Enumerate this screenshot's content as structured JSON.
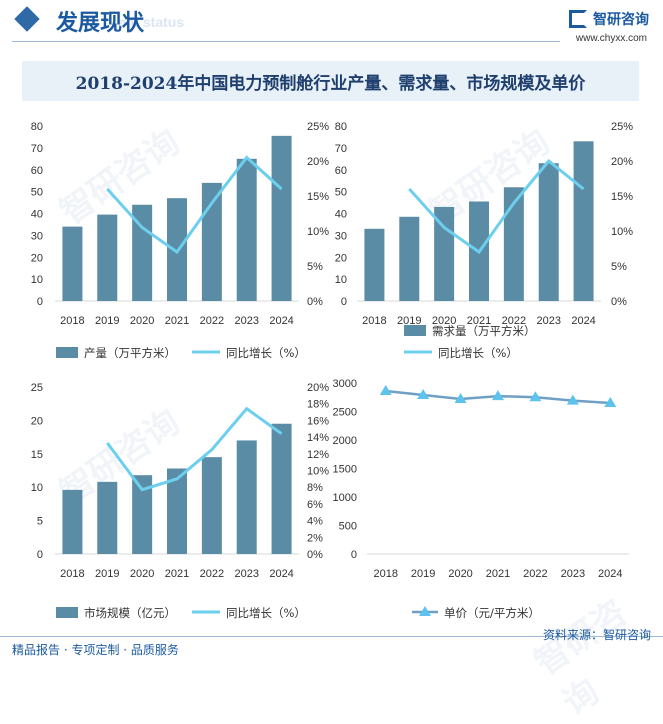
{
  "header": {
    "section_title": "发展现状",
    "section_subtitle": "ent status",
    "brand_name": "智研咨询",
    "brand_url": "www.chyxx.com"
  },
  "title": "2018-2024年中国电力预制舱行业产量、需求量、市场规模及单价",
  "watermark_text": "智研咨询",
  "colors": {
    "bar": "#5b8ca6",
    "line": "#6ccfee",
    "price": "#6fa0c4",
    "price_marker": "#5cc3ec"
  },
  "footer": {
    "left": "精品报告 · 专项定制 · 品质服务",
    "source": "资料来源：智研咨询"
  },
  "chart_data": [
    {
      "type": "bar",
      "categories": [
        "2018",
        "2019",
        "2020",
        "2021",
        "2022",
        "2023",
        "2024"
      ],
      "series": [
        {
          "name": "产量（万平方米）",
          "type": "bar",
          "axis": "left",
          "values": [
            34,
            39.5,
            44,
            47,
            54,
            65,
            75.5
          ]
        },
        {
          "name": "同比增长（%）",
          "type": "line",
          "axis": "right",
          "values": [
            null,
            16,
            10.5,
            7,
            14,
            20.5,
            16
          ]
        }
      ],
      "y_left": {
        "min": 0,
        "max": 80,
        "ticks": [
          "0",
          "10",
          "20",
          "30",
          "40",
          "50",
          "60",
          "70",
          "80"
        ]
      },
      "y_right": {
        "min": 0,
        "max": 25,
        "ticks": [
          "0%",
          "5%",
          "10%",
          "15%",
          "20%",
          "25%"
        ]
      }
    },
    {
      "type": "bar",
      "categories": [
        "2018",
        "2019",
        "2020",
        "2021",
        "2022",
        "2023",
        "2024"
      ],
      "series": [
        {
          "name": "需求量（万平方米）",
          "type": "bar",
          "axis": "left",
          "values": [
            33,
            38.5,
            43,
            45.5,
            52,
            63,
            73
          ]
        },
        {
          "name": "同比增长（%）",
          "type": "line",
          "axis": "right",
          "values": [
            null,
            16,
            10.5,
            7,
            14,
            20,
            16
          ]
        }
      ],
      "y_left": {
        "min": 0,
        "max": 80,
        "ticks": [
          "0",
          "10",
          "20",
          "30",
          "40",
          "50",
          "60",
          "70",
          "80"
        ]
      },
      "y_right": {
        "min": 0,
        "max": 25,
        "ticks": [
          "0%",
          "5%",
          "10%",
          "15%",
          "20%",
          "25%"
        ]
      }
    },
    {
      "type": "bar",
      "categories": [
        "2018",
        "2019",
        "2020",
        "2021",
        "2022",
        "2023",
        "2024"
      ],
      "series": [
        {
          "name": "市场规模（亿元）",
          "type": "bar",
          "axis": "left",
          "values": [
            9.6,
            10.8,
            11.8,
            12.8,
            14.5,
            17,
            19.5
          ]
        },
        {
          "name": "同比增长（%）",
          "type": "line",
          "axis": "right",
          "values": [
            null,
            13.3,
            7.7,
            9,
            12.5,
            17.4,
            14.4
          ]
        }
      ],
      "y_left": {
        "min": 0,
        "max": 25,
        "ticks": [
          "0",
          "5",
          "10",
          "15",
          "20",
          "25"
        ]
      },
      "y_right": {
        "min": 0,
        "max": 20,
        "ticks": [
          "0%",
          "2%",
          "4%",
          "6%",
          "8%",
          "10%",
          "12%",
          "14%",
          "16%",
          "18%",
          "20%"
        ]
      }
    },
    {
      "type": "line",
      "categories": [
        "2018",
        "2019",
        "2020",
        "2021",
        "2022",
        "2023",
        "2024"
      ],
      "series": [
        {
          "name": "单价（元/平方米）",
          "type": "line",
          "axis": "left",
          "values": [
            2860,
            2790,
            2720,
            2770,
            2750,
            2690,
            2650
          ]
        }
      ],
      "y_left": {
        "min": 0,
        "max": 3000,
        "ticks": [
          "0",
          "500",
          "1000",
          "1500",
          "2000",
          "2500",
          "3000"
        ]
      }
    }
  ]
}
